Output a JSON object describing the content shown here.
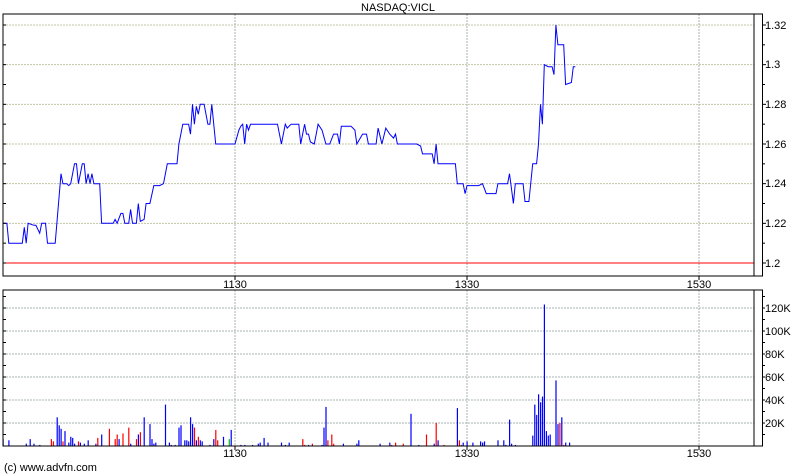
{
  "chart_data": [
    {
      "type": "line",
      "title": "NASDAQ:VICL",
      "x_ticks": [
        "1130",
        "1330",
        "1530"
      ],
      "x_range": [
        "09:30",
        "16:00"
      ],
      "y_ticks": [
        "1.32",
        "1.3",
        "1.28",
        "1.26",
        "1.24",
        "1.22",
        "1.2"
      ],
      "ylim": [
        1.2,
        1.32
      ],
      "grid": true,
      "y_axis_side": "right",
      "line_color": "#0000ff",
      "reference_line": {
        "value": 1.2,
        "color": "#ff0000"
      },
      "points": [
        [
          "09:30",
          1.22
        ],
        [
          "09:32",
          1.22
        ],
        [
          "09:33",
          1.21
        ],
        [
          "09:40",
          1.21
        ],
        [
          "09:41",
          1.218
        ],
        [
          "09:42",
          1.21
        ],
        [
          "09:43",
          1.22
        ],
        [
          "09:46",
          1.219
        ],
        [
          "09:47",
          1.219
        ],
        [
          "09:49",
          1.215
        ],
        [
          "09:50",
          1.22
        ],
        [
          "09:52",
          1.22
        ],
        [
          "09:53",
          1.21
        ],
        [
          "09:57",
          1.21
        ],
        [
          "10:00",
          1.245
        ],
        [
          "10:01",
          1.24
        ],
        [
          "10:03",
          1.24
        ],
        [
          "10:04",
          1.239
        ],
        [
          "10:05",
          1.24
        ],
        [
          "10:07",
          1.25
        ],
        [
          "10:08",
          1.25
        ],
        [
          "10:09",
          1.24
        ],
        [
          "10:11",
          1.25
        ],
        [
          "10:12",
          1.25
        ],
        [
          "10:13",
          1.24
        ],
        [
          "10:14",
          1.245
        ],
        [
          "10:15",
          1.24
        ],
        [
          "10:16",
          1.245
        ],
        [
          "10:17",
          1.24
        ],
        [
          "10:20",
          1.24
        ],
        [
          "10:21",
          1.22
        ],
        [
          "10:27",
          1.22
        ],
        [
          "10:28",
          1.222
        ],
        [
          "10:29",
          1.22
        ],
        [
          "10:31",
          1.225
        ],
        [
          "10:32",
          1.225
        ],
        [
          "10:33",
          1.22
        ],
        [
          "10:35",
          1.22
        ],
        [
          "10:36",
          1.227
        ],
        [
          "10:37",
          1.22
        ],
        [
          "10:39",
          1.22
        ],
        [
          "10:40",
          1.23
        ],
        [
          "10:41",
          1.221
        ],
        [
          "10:43",
          1.222
        ],
        [
          "10:44",
          1.23
        ],
        [
          "10:46",
          1.23
        ],
        [
          "10:48",
          1.239
        ],
        [
          "10:51",
          1.239
        ],
        [
          "10:53",
          1.24
        ],
        [
          "10:55",
          1.25
        ],
        [
          "11:00",
          1.25
        ],
        [
          "11:01",
          1.26
        ],
        [
          "11:03",
          1.27
        ],
        [
          "11:06",
          1.27
        ],
        [
          "11:07",
          1.265
        ],
        [
          "11:08",
          1.28
        ],
        [
          "11:09",
          1.27
        ],
        [
          "11:10",
          1.279
        ],
        [
          "11:11",
          1.275
        ],
        [
          "11:12",
          1.28
        ],
        [
          "11:14",
          1.28
        ],
        [
          "11:16",
          1.27
        ],
        [
          "11:17",
          1.27
        ],
        [
          "11:18",
          1.28
        ],
        [
          "11:20",
          1.26
        ],
        [
          "11:26",
          1.26
        ],
        [
          "11:30",
          1.26
        ],
        [
          "11:32",
          1.267
        ],
        [
          "11:33",
          1.269
        ],
        [
          "11:34",
          1.27
        ],
        [
          "11:35",
          1.26
        ],
        [
          "11:36",
          1.27
        ],
        [
          "11:37",
          1.267
        ],
        [
          "11:38",
          1.27
        ],
        [
          "11:52",
          1.27
        ],
        [
          "11:54",
          1.26
        ],
        [
          "11:56",
          1.27
        ],
        [
          "11:57",
          1.268
        ],
        [
          "11:59",
          1.27
        ],
        [
          "12:03",
          1.27
        ],
        [
          "12:04",
          1.26
        ],
        [
          "12:06",
          1.27
        ],
        [
          "12:07",
          1.265
        ],
        [
          "12:08",
          1.265
        ],
        [
          "12:09",
          1.261
        ],
        [
          "12:11",
          1.26
        ],
        [
          "12:13",
          1.27
        ],
        [
          "12:15",
          1.267
        ],
        [
          "12:17",
          1.26
        ],
        [
          "12:19",
          1.26
        ],
        [
          "12:21",
          1.265
        ],
        [
          "12:23",
          1.265
        ],
        [
          "12:24",
          1.26
        ],
        [
          "12:25",
          1.269
        ],
        [
          "12:30",
          1.269
        ],
        [
          "12:32",
          1.267
        ],
        [
          "12:33",
          1.26
        ],
        [
          "12:36",
          1.265
        ],
        [
          "12:38",
          1.265
        ],
        [
          "12:39",
          1.26
        ],
        [
          "12:43",
          1.26
        ],
        [
          "12:44",
          1.268
        ],
        [
          "12:46",
          1.26
        ],
        [
          "12:48",
          1.268
        ],
        [
          "12:50",
          1.265
        ],
        [
          "12:52",
          1.263
        ],
        [
          "12:53",
          1.265
        ],
        [
          "12:54",
          1.26
        ],
        [
          "12:55",
          1.26
        ],
        [
          "13:04",
          1.26
        ],
        [
          "13:06",
          1.259
        ],
        [
          "13:07",
          1.255
        ],
        [
          "13:12",
          1.255
        ],
        [
          "13:13",
          1.25
        ],
        [
          "13:14",
          1.26
        ],
        [
          "13:15",
          1.25
        ],
        [
          "13:24",
          1.25
        ],
        [
          "13:25",
          1.24
        ],
        [
          "13:28",
          1.24
        ],
        [
          "13:29",
          1.235
        ],
        [
          "13:30",
          1.239
        ],
        [
          "13:36",
          1.239
        ],
        [
          "13:38",
          1.24
        ],
        [
          "13:40",
          1.235
        ],
        [
          "13:45",
          1.235
        ],
        [
          "13:46",
          1.24
        ],
        [
          "13:51",
          1.24
        ],
        [
          "13:52",
          1.245
        ],
        [
          "13:54",
          1.23
        ],
        [
          "13:55",
          1.24
        ],
        [
          "13:59",
          1.24
        ],
        [
          "14:00",
          1.231
        ],
        [
          "14:02",
          1.231
        ],
        [
          "14:04",
          1.25
        ],
        [
          "14:06",
          1.25
        ],
        [
          "14:07",
          1.26
        ],
        [
          "14:08",
          1.28
        ],
        [
          "14:09",
          1.27
        ],
        [
          "14:10",
          1.3
        ],
        [
          "14:12",
          1.299
        ],
        [
          "14:14",
          1.299
        ],
        [
          "14:15",
          1.295
        ],
        [
          "14:16",
          1.32
        ],
        [
          "14:17",
          1.31
        ],
        [
          "14:20",
          1.31
        ],
        [
          "14:21",
          1.29
        ],
        [
          "14:24",
          1.291
        ],
        [
          "14:25",
          1.299
        ],
        [
          "14:26",
          1.299
        ]
      ]
    },
    {
      "type": "bar",
      "x_ticks": [
        "1130",
        "1330",
        "1530"
      ],
      "y_ticks": [
        "120K",
        "100K",
        "80K",
        "60K",
        "40K",
        "20K"
      ],
      "ylim": [
        0,
        135
      ],
      "y_unit": "K",
      "grid": true,
      "colors": {
        "blue": "#0000ff",
        "red": "#ff0000",
        "green": "#00c000"
      },
      "bars": [
        [
          "09:30",
          6,
          "blue"
        ],
        [
          "09:33",
          5,
          "blue"
        ],
        [
          "09:42",
          2,
          "blue"
        ],
        [
          "09:44",
          6,
          "blue"
        ],
        [
          "09:46",
          2,
          "blue"
        ],
        [
          "09:49",
          1,
          "blue"
        ],
        [
          "09:55",
          6,
          "red"
        ],
        [
          "09:56",
          4,
          "red"
        ],
        [
          "09:58",
          25,
          "blue"
        ],
        [
          "09:59",
          18,
          "blue"
        ],
        [
          "10:00",
          15,
          "blue"
        ],
        [
          "10:01",
          4,
          "red"
        ],
        [
          "10:02",
          13,
          "blue"
        ],
        [
          "10:04",
          3,
          "blue"
        ],
        [
          "10:05",
          8,
          "blue"
        ],
        [
          "10:06",
          7,
          "blue"
        ],
        [
          "10:07",
          2,
          "blue"
        ],
        [
          "10:09",
          4,
          "red"
        ],
        [
          "10:10",
          3,
          "blue"
        ],
        [
          "10:12",
          2,
          "blue"
        ],
        [
          "10:14",
          5,
          "blue"
        ],
        [
          "10:18",
          2,
          "blue"
        ],
        [
          "10:19",
          7,
          "red"
        ],
        [
          "10:21",
          10,
          "blue"
        ],
        [
          "10:25",
          15,
          "red"
        ],
        [
          "10:28",
          6,
          "red"
        ],
        [
          "10:29",
          10,
          "red"
        ],
        [
          "10:30",
          6,
          "blue"
        ],
        [
          "10:32",
          11,
          "red"
        ],
        [
          "10:35",
          16,
          "red"
        ],
        [
          "10:36",
          2,
          "blue"
        ],
        [
          "10:39",
          6,
          "red"
        ],
        [
          "10:40",
          10,
          "blue"
        ],
        [
          "10:41",
          12,
          "red"
        ],
        [
          "10:43",
          25,
          "blue"
        ],
        [
          "10:46",
          19,
          "blue"
        ],
        [
          "10:47",
          6,
          "blue"
        ],
        [
          "10:48",
          2,
          "blue"
        ],
        [
          "10:49",
          3,
          "blue"
        ],
        [
          "10:54",
          36,
          "blue"
        ],
        [
          "10:56",
          3,
          "blue"
        ],
        [
          "10:57",
          1,
          "blue"
        ],
        [
          "10:59",
          1,
          "blue"
        ],
        [
          "11:01",
          16,
          "blue"
        ],
        [
          "11:02",
          18,
          "blue"
        ],
        [
          "11:04",
          5,
          "blue"
        ],
        [
          "11:05",
          5,
          "blue"
        ],
        [
          "11:06",
          4,
          "blue"
        ],
        [
          "11:07",
          25,
          "blue"
        ],
        [
          "11:08",
          19,
          "blue"
        ],
        [
          "11:09",
          16,
          "red"
        ],
        [
          "11:10",
          5,
          "blue"
        ],
        [
          "11:11",
          8,
          "red"
        ],
        [
          "11:12",
          5,
          "blue"
        ],
        [
          "11:13",
          4,
          "blue"
        ],
        [
          "11:17",
          1,
          "blue"
        ],
        [
          "11:19",
          6,
          "blue"
        ],
        [
          "11:20",
          14,
          "red"
        ],
        [
          "11:21",
          5,
          "red"
        ],
        [
          "11:24",
          8,
          "blue"
        ],
        [
          "11:27",
          6,
          "green"
        ],
        [
          "11:28",
          14,
          "blue"
        ],
        [
          "11:33",
          1,
          "blue"
        ],
        [
          "11:35",
          1,
          "blue"
        ],
        [
          "11:39",
          1,
          "blue"
        ],
        [
          "11:42",
          2,
          "blue"
        ],
        [
          "11:43",
          3,
          "blue"
        ],
        [
          "11:45",
          7,
          "blue"
        ],
        [
          "11:47",
          3,
          "blue"
        ],
        [
          "11:54",
          3,
          "blue"
        ],
        [
          "11:56",
          1,
          "blue"
        ],
        [
          "11:58",
          3,
          "blue"
        ],
        [
          "12:05",
          6,
          "red"
        ],
        [
          "12:06",
          1,
          "red"
        ],
        [
          "12:08",
          1,
          "blue"
        ],
        [
          "12:10",
          2,
          "red"
        ],
        [
          "12:15",
          1,
          "blue"
        ],
        [
          "12:16",
          16,
          "blue"
        ],
        [
          "12:17",
          34,
          "blue"
        ],
        [
          "12:18",
          5,
          "red"
        ],
        [
          "12:20",
          10,
          "red"
        ],
        [
          "12:21",
          2,
          "red"
        ],
        [
          "12:26",
          2,
          "blue"
        ],
        [
          "12:33",
          2,
          "blue"
        ],
        [
          "12:34",
          5,
          "blue"
        ],
        [
          "12:45",
          2,
          "blue"
        ],
        [
          "12:50",
          3,
          "blue"
        ],
        [
          "12:51",
          1,
          "red"
        ],
        [
          "12:53",
          3,
          "red"
        ],
        [
          "12:57",
          2,
          "red"
        ],
        [
          "13:01",
          28,
          "blue"
        ],
        [
          "13:05",
          1,
          "blue"
        ],
        [
          "13:09",
          10,
          "red"
        ],
        [
          "13:13",
          2,
          "blue"
        ],
        [
          "13:14",
          20,
          "red"
        ],
        [
          "13:15",
          5,
          "blue"
        ],
        [
          "13:18",
          1,
          "red"
        ],
        [
          "13:25",
          33,
          "blue"
        ],
        [
          "13:26",
          5,
          "red"
        ],
        [
          "13:27",
          1,
          "red"
        ],
        [
          "13:28",
          3,
          "blue"
        ],
        [
          "13:30",
          4,
          "blue"
        ],
        [
          "13:33",
          3,
          "blue"
        ],
        [
          "13:37",
          4,
          "blue"
        ],
        [
          "13:38",
          3,
          "blue"
        ],
        [
          "13:39",
          4,
          "blue"
        ],
        [
          "13:46",
          5,
          "blue"
        ],
        [
          "13:49",
          5,
          "blue"
        ],
        [
          "13:50",
          1,
          "blue"
        ],
        [
          "13:52",
          23,
          "blue"
        ],
        [
          "13:53",
          2,
          "blue"
        ],
        [
          "13:55",
          1,
          "blue"
        ],
        [
          "14:04",
          9,
          "blue"
        ],
        [
          "14:05",
          36,
          "blue"
        ],
        [
          "14:06",
          27,
          "blue"
        ],
        [
          "14:07",
          45,
          "blue"
        ],
        [
          "14:08",
          38,
          "blue"
        ],
        [
          "14:09",
          43,
          "blue"
        ],
        [
          "14:10",
          123,
          "blue"
        ],
        [
          "14:11",
          13,
          "blue"
        ],
        [
          "14:12",
          9,
          "blue"
        ],
        [
          "14:13",
          10,
          "blue"
        ],
        [
          "14:16",
          57,
          "blue"
        ],
        [
          "14:17",
          19,
          "blue"
        ],
        [
          "14:18",
          20,
          "red"
        ],
        [
          "14:19",
          25,
          "blue"
        ],
        [
          "14:20",
          1,
          "red"
        ],
        [
          "14:21",
          3,
          "blue"
        ],
        [
          "14:23",
          3,
          "blue"
        ]
      ]
    }
  ],
  "footer": {
    "copyright": "(c) www.advfn.com"
  }
}
